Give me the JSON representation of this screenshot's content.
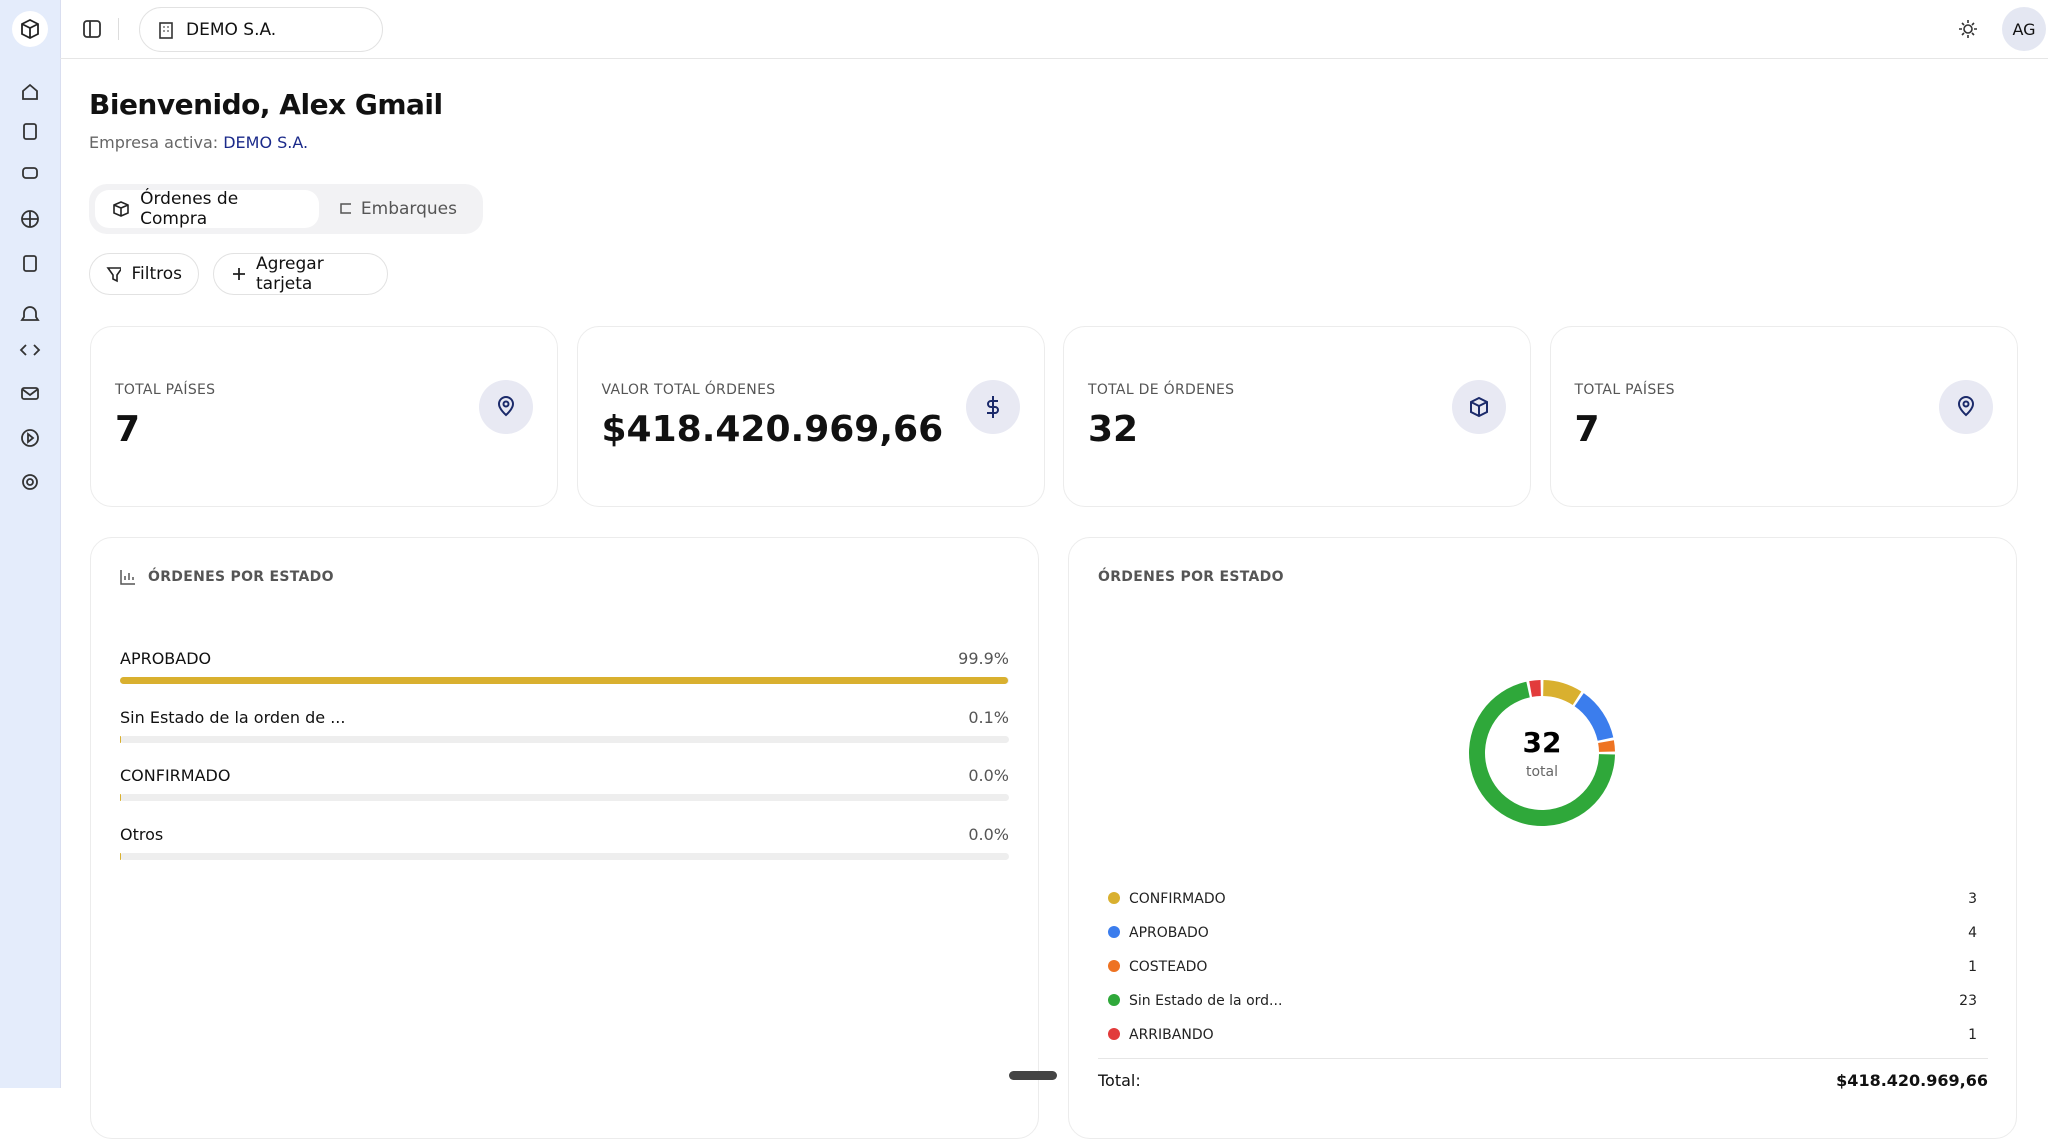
{
  "header": {
    "company": "DEMO S.A.",
    "avatar": "AG"
  },
  "welcome": {
    "title": "Bienvenido, Alex Gmail",
    "subtitle_label": "Empresa activa:",
    "company": "DEMO S.A."
  },
  "tabs": [
    "Órdenes de Compra",
    "Embarques"
  ],
  "buttons": [
    "Filtros",
    "Agregar tarjeta"
  ],
  "stat_cards": [
    {
      "label": "TOTAL PAÍSES",
      "value": 7
    },
    {
      "label": "VALOR TOTAL ÓRDENES",
      "value": "$418.420.969,66"
    },
    {
      "label": "TOTAL DE ÓRDENES",
      "value": 32
    },
    {
      "label": "TOTAL PAÍSES",
      "value": 7
    }
  ],
  "chart_data": [
    {
      "type": "bar",
      "title": "ÓRDENES POR ESTADO",
      "categories": [
        "APROBADO",
        "Sin Estado de la orden de ...",
        "CONFIRMADO",
        "Otros"
      ],
      "values": [
        99.9,
        0.1,
        0.0,
        0.0
      ],
      "value_labels": [
        "99.9%",
        "0.1%",
        "0.0%",
        "0.0%"
      ],
      "xlim": [
        0,
        100
      ],
      "color": "#d9b02f"
    },
    {
      "type": "pie",
      "title": "ÓRDENES POR ESTADO",
      "center_value": 32,
      "center_label": "total",
      "categories": [
        "CONFIRMADO",
        "APROBADO",
        "COSTEADO",
        "Sin Estado de la ord...",
        "ARRIBANDO"
      ],
      "values": [
        3,
        4,
        1,
        23,
        1
      ],
      "colors": [
        "#d9b02f",
        "#3b7ded",
        "#ee7322",
        "#2fa83a",
        "#e23b3b"
      ],
      "total_label": "Total:",
      "total_value": "$418.420.969,66"
    }
  ]
}
